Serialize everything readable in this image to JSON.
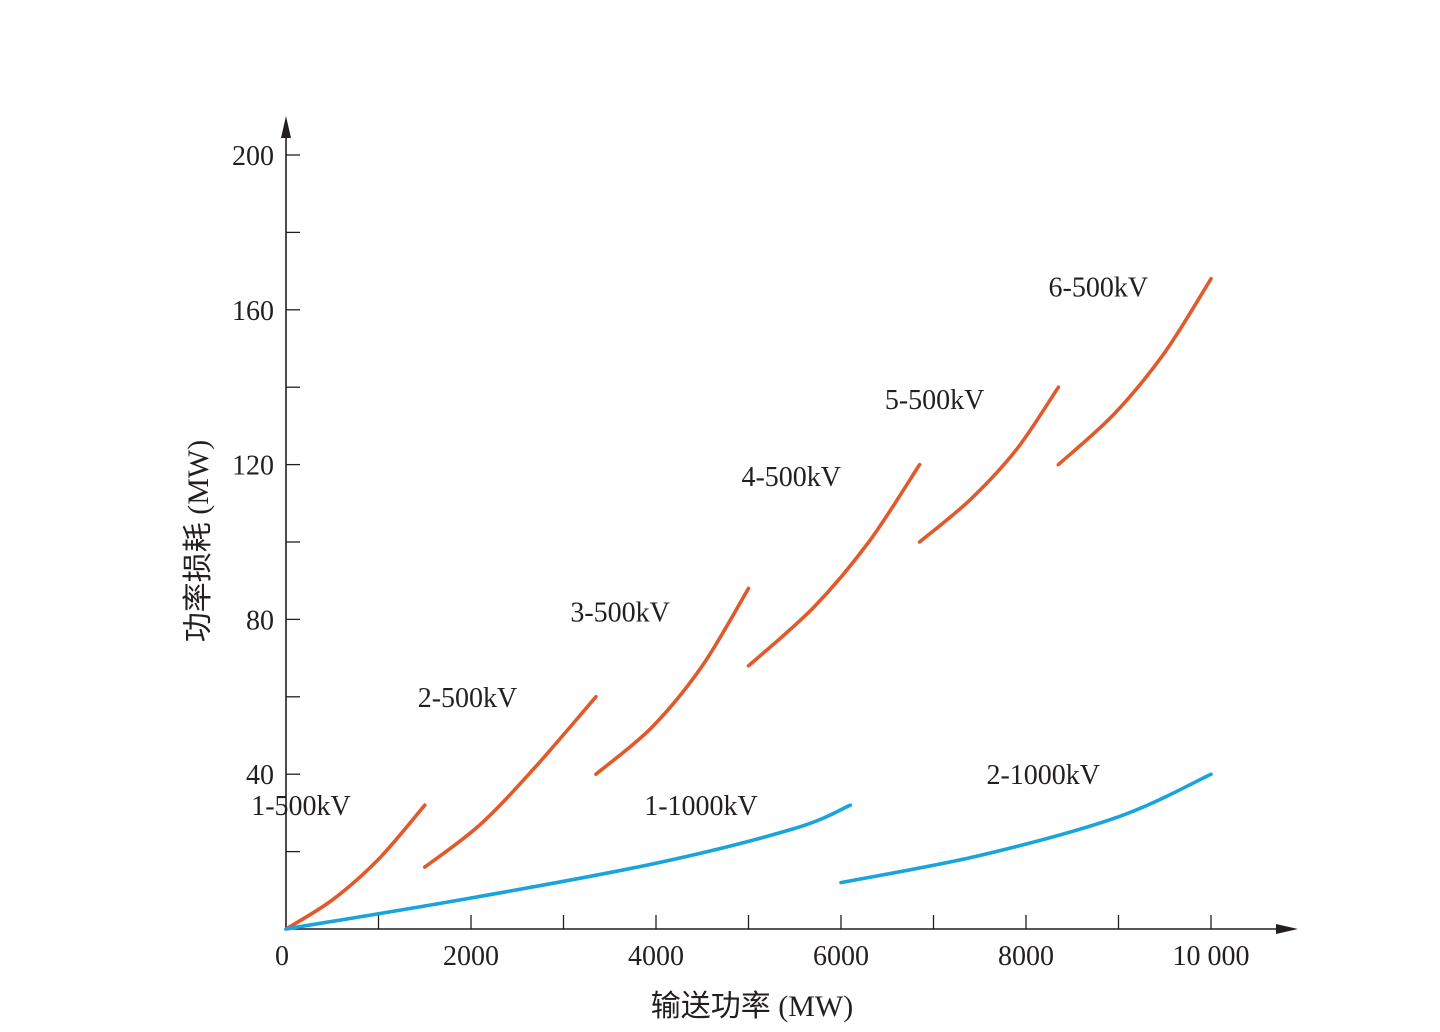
{
  "colors": {
    "axis": "#231f20",
    "series_500kv": "#e05a2b",
    "series_1000kv": "#1aa3dc"
  },
  "chart_data": {
    "type": "line",
    "title": "",
    "xlabel": "输送功率 (MW)",
    "ylabel": "功率损耗 (MW)",
    "xlim": [
      0,
      11000
    ],
    "ylim": [
      0,
      200
    ],
    "x_ticks": [
      {
        "value": 0,
        "label": "0"
      },
      {
        "value": 2000,
        "label": "2000"
      },
      {
        "value": 4000,
        "label": "4000"
      },
      {
        "value": 6000,
        "label": "6000"
      },
      {
        "value": 8000,
        "label": "8000"
      },
      {
        "value": 10000,
        "label": "10 000"
      }
    ],
    "x_minor_ticks": [
      1000,
      3000,
      5000,
      7000,
      9000
    ],
    "y_ticks": [
      {
        "value": 40,
        "label": "40"
      },
      {
        "value": 80,
        "label": "80"
      },
      {
        "value": 120,
        "label": "120"
      },
      {
        "value": 160,
        "label": "160"
      },
      {
        "value": 200,
        "label": "200"
      }
    ],
    "y_minor_ticks": [
      20,
      60,
      100,
      140,
      180
    ],
    "grid": false,
    "legend": "none",
    "series": [
      {
        "name": "1-500kV",
        "color_key": "series_500kv",
        "label_at": [
          700,
          32
        ],
        "points": [
          [
            0,
            0
          ],
          [
            500,
            7.5
          ],
          [
            1000,
            18
          ],
          [
            1500,
            32
          ]
        ]
      },
      {
        "name": "2-500kV",
        "color_key": "series_500kv",
        "label_at": [
          2500,
          60
        ],
        "points": [
          [
            1500,
            16
          ],
          [
            2100,
            27
          ],
          [
            2700,
            42
          ],
          [
            3350,
            60
          ]
        ]
      },
      {
        "name": "3-500kV",
        "color_key": "series_500kv",
        "label_at": [
          4150,
          82
        ],
        "points": [
          [
            3350,
            40
          ],
          [
            3950,
            52
          ],
          [
            4500,
            68
          ],
          [
            5000,
            88
          ]
        ]
      },
      {
        "name": "4-500kV",
        "color_key": "series_500kv",
        "label_at": [
          6000,
          117
        ],
        "points": [
          [
            5000,
            68
          ],
          [
            5700,
            83
          ],
          [
            6300,
            100
          ],
          [
            6850,
            120
          ]
        ]
      },
      {
        "name": "5-500kV",
        "color_key": "series_500kv",
        "label_at": [
          7550,
          137
        ],
        "points": [
          [
            6850,
            100
          ],
          [
            7400,
            111
          ],
          [
            7900,
            124
          ],
          [
            8350,
            140
          ]
        ]
      },
      {
        "name": "6-500kV",
        "color_key": "series_500kv",
        "label_at": [
          9320,
          166
        ],
        "points": [
          [
            8350,
            120
          ],
          [
            8950,
            133
          ],
          [
            9500,
            149
          ],
          [
            10000,
            168
          ]
        ]
      },
      {
        "name": "1-1000kV",
        "color_key": "series_1000kv",
        "label_at": [
          5100,
          32
        ],
        "points": [
          [
            0,
            0
          ],
          [
            2000,
            8
          ],
          [
            4000,
            17
          ],
          [
            5500,
            26
          ],
          [
            6100,
            32
          ]
        ]
      },
      {
        "name": "2-1000kV",
        "color_key": "series_1000kv",
        "label_at": [
          8800,
          40
        ],
        "points": [
          [
            6000,
            12
          ],
          [
            7500,
            19
          ],
          [
            9000,
            29
          ],
          [
            10000,
            40
          ]
        ]
      }
    ]
  }
}
